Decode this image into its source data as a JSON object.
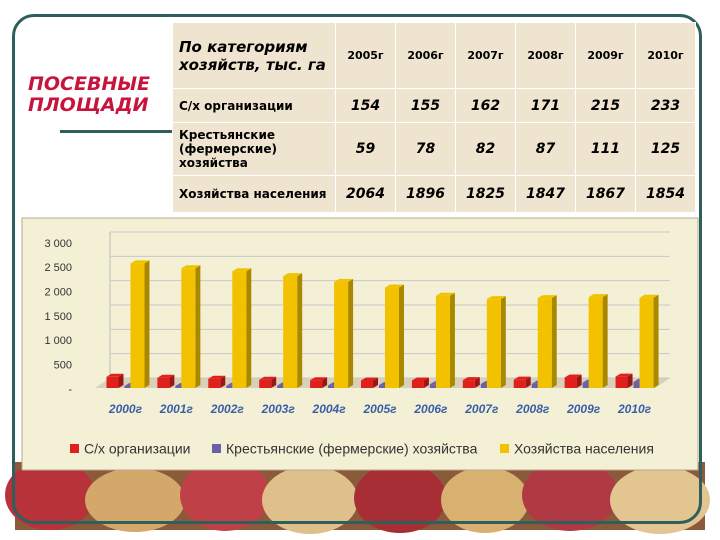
{
  "title": "ПОСЕВНЫЕ ПЛОЩАДИ",
  "table": {
    "header": [
      "По категориям хозяйств, тыс. га",
      "2005г",
      "2006г",
      "2007г",
      "2008г",
      "2009г",
      "2010г"
    ],
    "rows": [
      [
        "С/х организации",
        154,
        155,
        162,
        171,
        215,
        233
      ],
      [
        "Крестьянские (фермерские) хозяйства",
        59,
        78,
        82,
        87,
        111,
        125
      ],
      [
        "Хозяйства населения",
        2064,
        1896,
        1825,
        1847,
        1867,
        1854
      ]
    ]
  },
  "chart_data": {
    "type": "bar",
    "categories": [
      "2000г",
      "2001г",
      "2002г",
      "2003г",
      "2004г",
      "2005г",
      "2006г",
      "2007г",
      "2008г",
      "2009г",
      "2010г"
    ],
    "series": [
      {
        "name": "С/х организации",
        "color": "#e0201c",
        "values": [
          230,
          210,
          190,
          170,
          160,
          154,
          155,
          162,
          171,
          215,
          233
        ]
      },
      {
        "name": "Крестьянские (фермерские) хозяйства",
        "color": "#6a5fa8",
        "values": [
          40,
          42,
          45,
          50,
          55,
          59,
          78,
          82,
          87,
          111,
          125
        ]
      },
      {
        "name": "Хозяйства населения",
        "color": "#f2c200",
        "values": [
          2560,
          2460,
          2400,
          2300,
          2180,
          2064,
          1896,
          1825,
          1847,
          1867,
          1854
        ]
      }
    ],
    "ylim": [
      0,
      3000
    ],
    "yticks": [
      {
        "value": 0,
        "label": "-"
      },
      500,
      {
        "value": 1000,
        "label": "1 000"
      },
      {
        "value": 1500,
        "label": "1 500"
      },
      {
        "value": 2000,
        "label": "2 000"
      },
      {
        "value": 2500,
        "label": "2 500"
      },
      {
        "value": 3000,
        "label": "3 000"
      }
    ],
    "grid": true,
    "legend": "bottom"
  }
}
